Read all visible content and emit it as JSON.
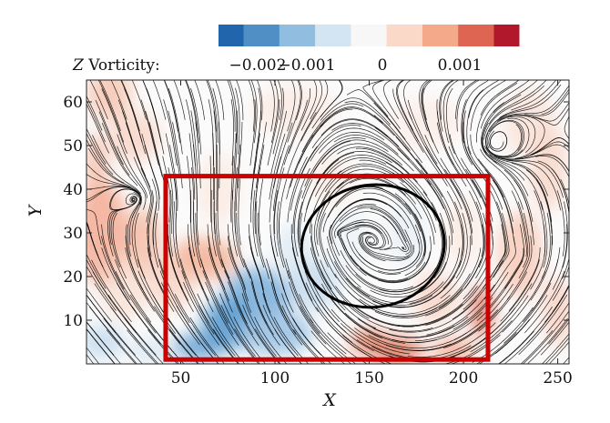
{
  "chart_data": {
    "type": "heatmap",
    "description_fields": {
      "overlay": "streamlines",
      "highlight_box": {
        "x_range": [
          42,
          213
        ],
        "y_range": [
          1,
          43
        ],
        "color": "#cc0000"
      }
    },
    "xlabel": "X",
    "ylabel": "Y",
    "xlim": [
      0,
      256
    ],
    "ylim": [
      0,
      65
    ],
    "x_ticks": [
      50,
      100,
      150,
      200,
      250
    ],
    "y_ticks": [
      10,
      20,
      30,
      40,
      50,
      60
    ],
    "x_tick_labels": [
      "50",
      "100",
      "150",
      "200",
      "250"
    ],
    "y_tick_labels": [
      "10",
      "20",
      "30",
      "40",
      "50",
      "60"
    ],
    "colorbar": {
      "title": "Z Vorticity:",
      "title_var": "Z",
      "title_rest": " Vorticity:",
      "range": [
        -0.0025,
        0.0015
      ],
      "tick_values": [
        -0.002,
        -0.001,
        0,
        0.001
      ],
      "tick_labels": [
        "−0.002",
        "−0.001",
        "0",
        "0.001"
      ],
      "colors": [
        "#2166ac",
        "#4f8fc6",
        "#91bde0",
        "#d3e5f2",
        "#f7f7f7",
        "#fbd9c8",
        "#f4a98a",
        "#dd6551",
        "#b2182b"
      ]
    },
    "colors": {
      "negative": "#2166ac",
      "positive": "#b2182b",
      "neutral": "#f7f7f7",
      "streamline": "#000000",
      "box": "#cc0000"
    }
  }
}
